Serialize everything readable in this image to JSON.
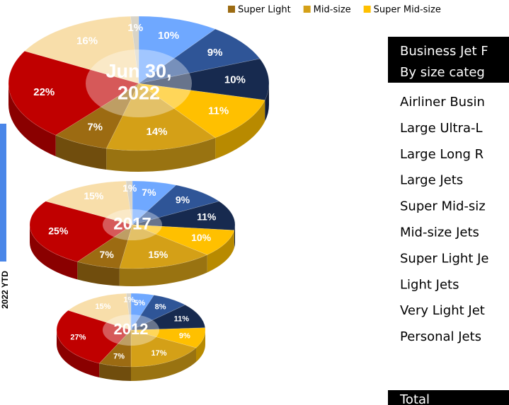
{
  "legend": [
    {
      "name": "Super Light",
      "color": "#9c6b12"
    },
    {
      "name": "Mid-size",
      "color": "#d4a017"
    },
    {
      "name": "Super Mid-size",
      "color": "#ffc000"
    }
  ],
  "left_axis_label": "2022 YTD",
  "table": {
    "header": [
      "Business Jet F",
      "By size categ"
    ],
    "rows": [
      "Airliner Busin",
      "Large Ultra-L",
      "Large Long R",
      "Large Jets",
      "Super Mid-siz",
      "Mid-size Jets",
      "Super Light Je",
      "Light Jets",
      "Very Light Jet",
      "Personal Jets"
    ],
    "footer": "Total"
  },
  "chart_data": [
    {
      "type": "pie",
      "title_lines": [
        "Jun 30,",
        "2022"
      ],
      "values": [
        10,
        9,
        10,
        11,
        14,
        7,
        22,
        16,
        1
      ],
      "value_labels": [
        "10%",
        "9%",
        "10%",
        "11%",
        "14%",
        "7%",
        "22%",
        "16%",
        "1%"
      ],
      "colors": [
        "#6fa8ff",
        "#2f5597",
        "#172a4f",
        "#ffc000",
        "#d4a017",
        "#9c6b12",
        "#c00000",
        "#f8deaa",
        "#d9d4c7"
      ]
    },
    {
      "type": "pie",
      "title_lines": [
        "2017"
      ],
      "values": [
        7,
        9,
        11,
        10,
        15,
        7,
        25,
        15,
        1
      ],
      "value_labels": [
        "7%",
        "9%",
        "11%",
        "10%",
        "15%",
        "7%",
        "25%",
        "15%",
        "1%"
      ],
      "colors": [
        "#6fa8ff",
        "#2f5597",
        "#172a4f",
        "#ffc000",
        "#d4a017",
        "#9c6b12",
        "#c00000",
        "#f8deaa",
        "#d9d4c7"
      ]
    },
    {
      "type": "pie",
      "title_lines": [
        "2012"
      ],
      "values": [
        5,
        8,
        11,
        9,
        17,
        7,
        27,
        15,
        1
      ],
      "value_labels": [
        "5%",
        "8%",
        "11%",
        "9%",
        "17%",
        "7%",
        "27%",
        "15%",
        "1%"
      ],
      "colors": [
        "#6fa8ff",
        "#2f5597",
        "#172a4f",
        "#ffc000",
        "#d4a017",
        "#9c6b12",
        "#c00000",
        "#f8deaa",
        "#d9d4c7"
      ]
    }
  ]
}
